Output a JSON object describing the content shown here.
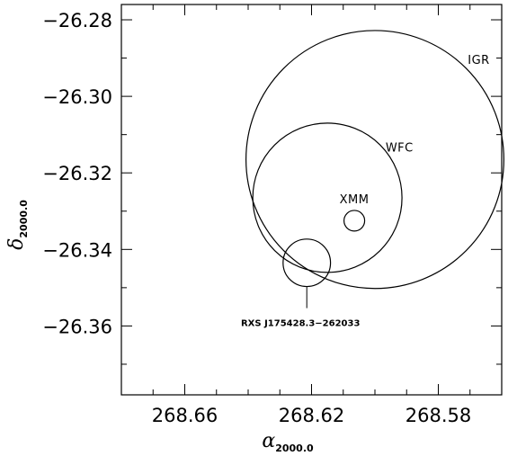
{
  "chart_data": {
    "type": "scatter",
    "title": "",
    "xlabel": {
      "symbol": "α",
      "subscript": "2000.0"
    },
    "ylabel": {
      "symbol": "δ",
      "subscript": "2000.0"
    },
    "xlim": [
      268.68,
      268.56
    ],
    "ylim": [
      -26.378,
      -26.276
    ],
    "x_reversed": true,
    "x_ticks": [
      {
        "value": 268.66,
        "label": "268.66"
      },
      {
        "value": 268.62,
        "label": "268.62"
      },
      {
        "value": 268.58,
        "label": "268.58"
      }
    ],
    "y_ticks": [
      {
        "value": -26.28,
        "label": "−26.28"
      },
      {
        "value": -26.3,
        "label": "−26.30"
      },
      {
        "value": -26.32,
        "label": "−26.32"
      },
      {
        "value": -26.34,
        "label": "−26.34"
      },
      {
        "value": -26.36,
        "label": "−26.36"
      }
    ],
    "grid": false,
    "regions": [
      {
        "name": "IGR",
        "label": "IGR",
        "ra": 268.6,
        "dec": -26.3165,
        "radius_dec": 0.0337
      },
      {
        "name": "WFC",
        "label": "WFC",
        "ra": 268.615,
        "dec": -26.3265,
        "radius_dec": 0.0195
      },
      {
        "name": "XMM",
        "label": "XMM",
        "ra": 268.6065,
        "dec": -26.3325,
        "radius_dec": 0.0027
      },
      {
        "name": "RXS",
        "label": "RXS J175428.3−262033",
        "ra": 268.6215,
        "dec": -26.3435,
        "radius_dec": 0.0062
      }
    ]
  }
}
